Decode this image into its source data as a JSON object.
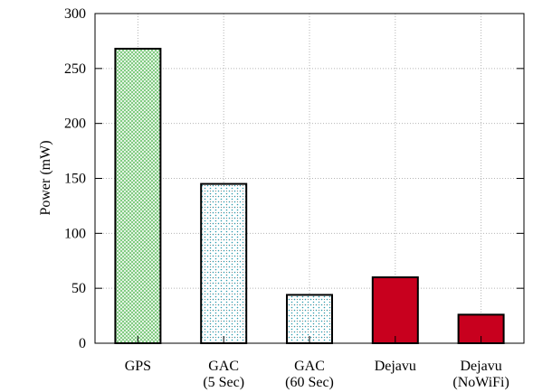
{
  "chart_data": {
    "type": "bar",
    "title": "",
    "xlabel": "",
    "ylabel": "Power (mW)",
    "ylim": [
      0,
      300
    ],
    "yticks": [
      0,
      50,
      100,
      150,
      200,
      250,
      300
    ],
    "grid": true,
    "legend": "none",
    "categories": [
      [
        "GPS"
      ],
      [
        "GAC",
        "(5 Sec)"
      ],
      [
        "GAC",
        "(60 Sec)"
      ],
      [
        "Dejavu"
      ],
      [
        "Dejavu",
        "(NoWiFi)"
      ]
    ],
    "values": [
      268,
      145,
      44,
      60,
      26
    ],
    "bar_styles": [
      {
        "pattern": "crosshatch",
        "color": "#6fc46f"
      },
      {
        "pattern": "dots",
        "color": "#2f9db0"
      },
      {
        "pattern": "dots",
        "color": "#2f9db0"
      },
      {
        "pattern": "solid",
        "color": "#c8001e"
      },
      {
        "pattern": "solid",
        "color": "#c8001e"
      }
    ]
  }
}
